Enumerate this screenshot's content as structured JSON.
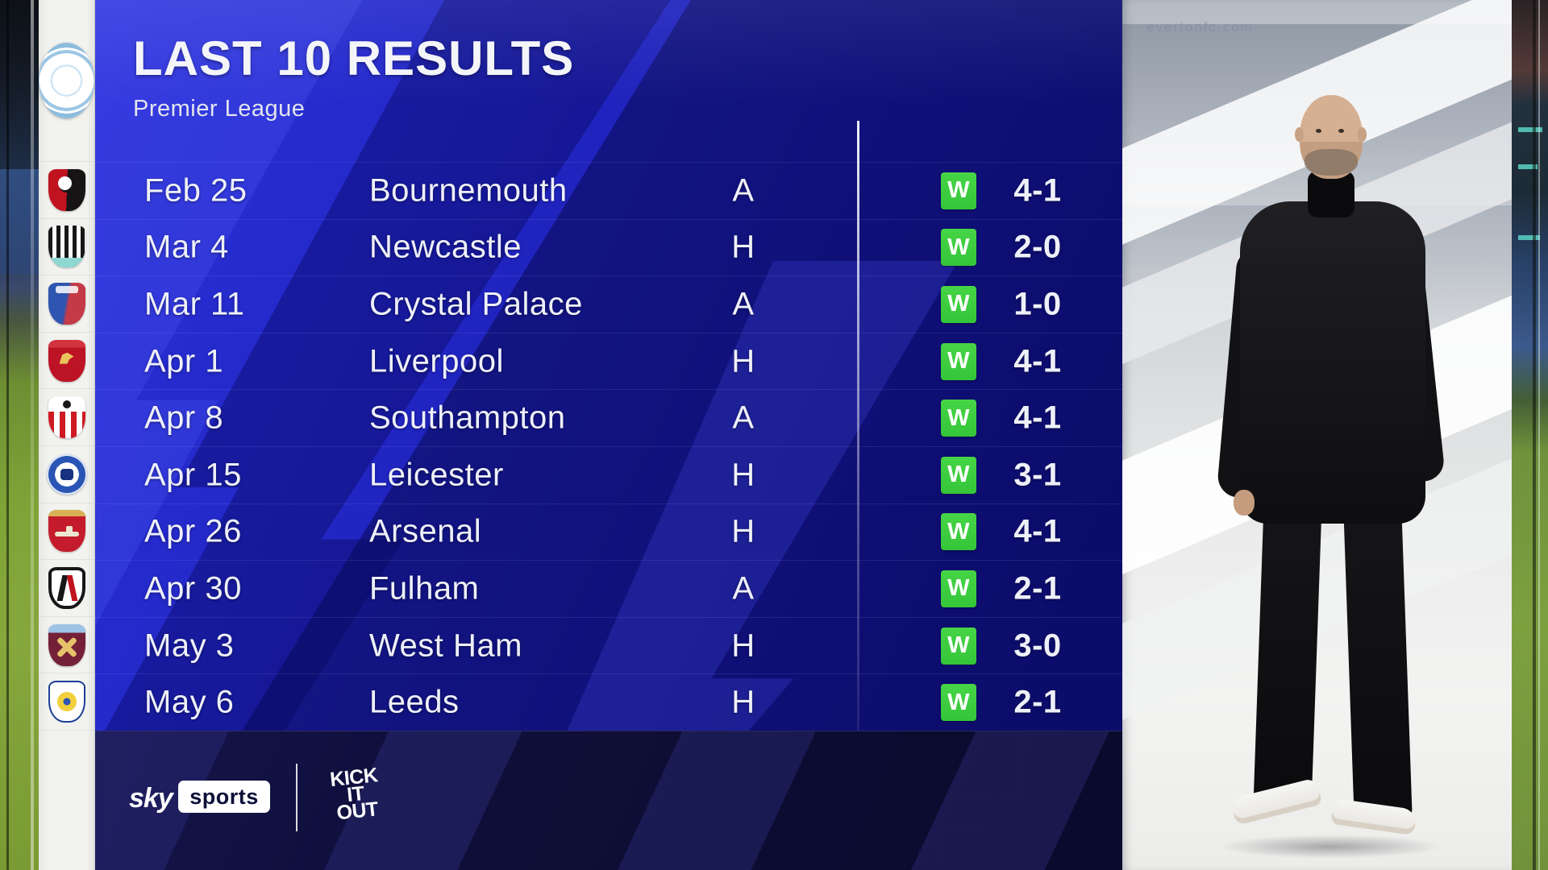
{
  "header": {
    "title": "LAST 10 RESULTS",
    "subtitle": "Premier League"
  },
  "club": {
    "name": "Manchester City",
    "icon": "manchester-city-crest"
  },
  "table": {
    "rows": [
      {
        "date": "Feb 25",
        "opponent": "Bournemouth",
        "venue": "A",
        "result": "W",
        "score": "4-1",
        "icon": "bournemouth-crest"
      },
      {
        "date": "Mar 4",
        "opponent": "Newcastle",
        "venue": "H",
        "result": "W",
        "score": "2-0",
        "icon": "newcastle-crest"
      },
      {
        "date": "Mar 11",
        "opponent": "Crystal Palace",
        "venue": "A",
        "result": "W",
        "score": "1-0",
        "icon": "crystal-palace-crest"
      },
      {
        "date": "Apr 1",
        "opponent": "Liverpool",
        "venue": "H",
        "result": "W",
        "score": "4-1",
        "icon": "liverpool-crest"
      },
      {
        "date": "Apr 8",
        "opponent": "Southampton",
        "venue": "A",
        "result": "W",
        "score": "4-1",
        "icon": "southampton-crest"
      },
      {
        "date": "Apr 15",
        "opponent": "Leicester",
        "venue": "H",
        "result": "W",
        "score": "3-1",
        "icon": "leicester-crest"
      },
      {
        "date": "Apr 26",
        "opponent": "Arsenal",
        "venue": "H",
        "result": "W",
        "score": "4-1",
        "icon": "arsenal-crest"
      },
      {
        "date": "Apr 30",
        "opponent": "Fulham",
        "venue": "A",
        "result": "W",
        "score": "2-1",
        "icon": "fulham-crest"
      },
      {
        "date": "May 3",
        "opponent": "West Ham",
        "venue": "H",
        "result": "W",
        "score": "3-0",
        "icon": "west-ham-crest"
      },
      {
        "date": "May 6",
        "opponent": "Leeds",
        "venue": "H",
        "result": "W",
        "score": "2-1",
        "icon": "leeds-crest"
      }
    ]
  },
  "footer": {
    "sky": "sky",
    "sports": "sports",
    "kick_it_out": {
      "line1": "KICK",
      "line2": "IT",
      "line3": "OUT"
    }
  },
  "photo_panel": {
    "watermark": "evertonfc.com"
  },
  "colors": {
    "win_badge_green": "#3cc83c",
    "panel_blue": "#1d1fb6",
    "panel_dark_blue": "#0e0e6a",
    "footer_navy": "#0d0d38",
    "rail_white": "#f2f2ef"
  }
}
